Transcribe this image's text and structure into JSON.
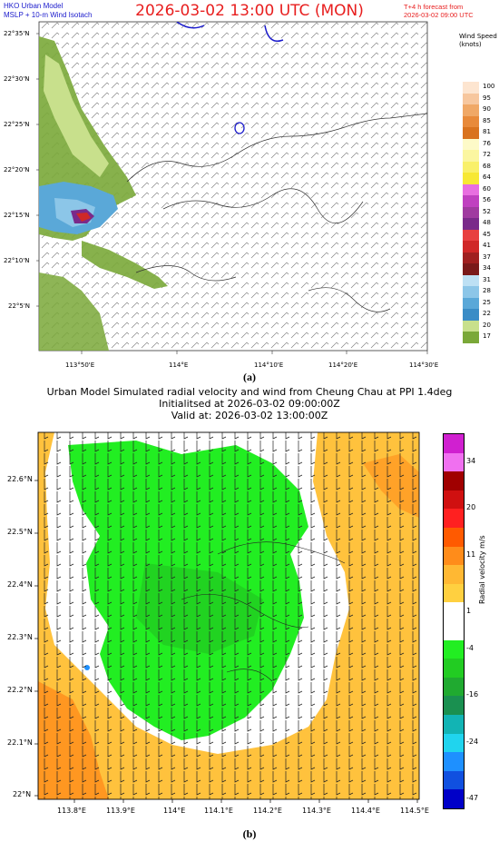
{
  "panel_a": {
    "header_left": [
      "HKO Urban Model",
      "MSLP + 10-m Wind Isotach"
    ],
    "title": "2026-03-02 13:00 UTC (MON)",
    "header_right": [
      "T+4 h forecast from",
      "2026-03-02 09:00 UTC"
    ],
    "colorbar_title": [
      "Wind Speed",
      "(knots)"
    ],
    "caption": "(a)"
  },
  "panel_b": {
    "title": [
      "Urban Model Simulated radial velocity and wind from Cheung Chau at PPI 1.4deg",
      "Initialitsed at 2026-03-02 09:00:00Z",
      "Valid at: 2026-03-02 13:00:00Z"
    ],
    "colorbar_title": "Radial velocity m/s",
    "caption": "(b)"
  },
  "chart_data": [
    {
      "type": "heatmap",
      "title": "2026-03-02 13:00 UTC (MON)",
      "subtitle": "MSLP + 10-m Wind Isotach",
      "x_ticks": [
        "113°50'E",
        "114°E",
        "114°10'E",
        "114°20'E",
        "114°30'E"
      ],
      "y_ticks": [
        "22°35'N",
        "22°30'N",
        "22°25'N",
        "22°20'N",
        "22°15'N",
        "22°10'N",
        "22°5'N"
      ],
      "colorbar": {
        "title": "Wind Speed (knots)",
        "levels": [
          "100",
          "95",
          "90",
          "85",
          "81",
          "76",
          "72",
          "68",
          "64",
          "60",
          "56",
          "52",
          "48",
          "45",
          "41",
          "37",
          "34",
          "31",
          "28",
          "25",
          "22",
          "20",
          "17"
        ],
        "colors": [
          "#fde5d0",
          "#f7c79e",
          "#f0a866",
          "#e88a3a",
          "#d9731e",
          "#fdfac8",
          "#fbf6a0",
          "#f9f06a",
          "#f7e834",
          "#e86ee0",
          "#c040c0",
          "#a03aa0",
          "#7a2a8a",
          "#e84040",
          "#d02828",
          "#a02020",
          "#7a1a1a",
          "#bde0f4",
          "#8cc6e8",
          "#5aa8d8",
          "#3a8cc6",
          "#c8e08c",
          "#7aa838"
        ]
      }
    },
    {
      "type": "heatmap",
      "title": "Urban Model Simulated radial velocity and wind from Cheung Chau at PPI 1.4deg",
      "x_ticks": [
        "113.8°E",
        "113.9°E",
        "114°E",
        "114.1°E",
        "114.2°E",
        "114.3°E",
        "114.4°E",
        "114.5°E"
      ],
      "y_ticks": [
        "22.6°N",
        "22.5°N",
        "22.4°N",
        "22.3°N",
        "22.2°N",
        "22.1°N",
        "22°N"
      ],
      "colorbar": {
        "title": "Radial velocity m/s",
        "tick_labels": [
          "34",
          "20",
          "11",
          "1",
          "-4",
          "-16",
          "-24",
          "-47"
        ],
        "colors": [
          "#d020d0",
          "#f070f0",
          "#a00000",
          "#d01010",
          "#ff2020",
          "#ff5a00",
          "#ff8c1a",
          "#ffb833",
          "#ffd040",
          "#ffffff",
          "#ffffff",
          "#22ee22",
          "#22cc22",
          "#20aa30",
          "#1a9050",
          "#12b4b4",
          "#20d4ee",
          "#1e90ff",
          "#1050e0",
          "#0000c8"
        ]
      }
    }
  ]
}
